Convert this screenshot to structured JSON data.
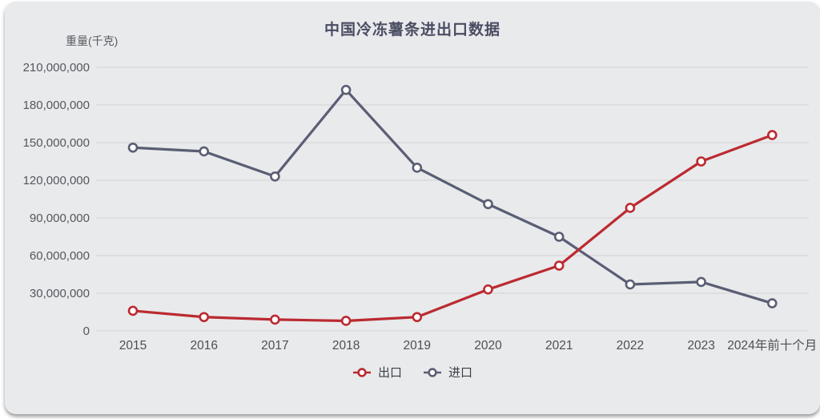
{
  "page": {
    "background_color": "#ffffff",
    "card_color": "#e9eaec",
    "gridline_color": "#d2d3d6"
  },
  "chart_data": {
    "type": "line",
    "title": "中国冷冻薯条进出口数据",
    "ylabel": "重量(千克)",
    "xlabel": "",
    "categories": [
      "2015",
      "2016",
      "2017",
      "2018",
      "2019",
      "2020",
      "2021",
      "2022",
      "2023",
      "2024年前十个月"
    ],
    "series": [
      {
        "name": "出口",
        "color": "#bb2a30",
        "values": [
          16000000,
          11000000,
          9000000,
          8000000,
          11000000,
          33000000,
          52000000,
          98000000,
          135000000,
          156000000
        ]
      },
      {
        "name": "进口",
        "color": "#5a5e74",
        "values": [
          146000000,
          143000000,
          123000000,
          192000000,
          130000000,
          101000000,
          75000000,
          37000000,
          39000000,
          22000000
        ]
      }
    ],
    "ylim": [
      0,
      210000000
    ],
    "ytick_step": 30000000,
    "yticks": [
      "0",
      "30,000,000",
      "60,000,000",
      "90,000,000",
      "120,000,000",
      "150,000,000",
      "180,000,000",
      "210,000,000"
    ],
    "grid": true,
    "legend_position": "bottom",
    "marker": "open-circle"
  }
}
